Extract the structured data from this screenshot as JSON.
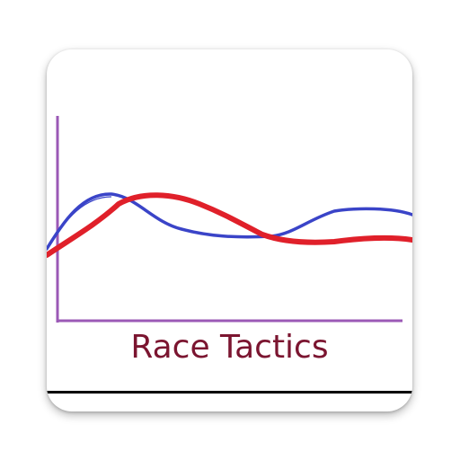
{
  "app": {
    "name": "Race Tactics"
  },
  "colors": {
    "axis": "#9b59b6",
    "blue_line": "#3a44c8",
    "red_line": "#e0202a",
    "title_text": "#7b1530",
    "rule": "#000000"
  },
  "icons": {
    "logo": "line-graph-icon"
  }
}
